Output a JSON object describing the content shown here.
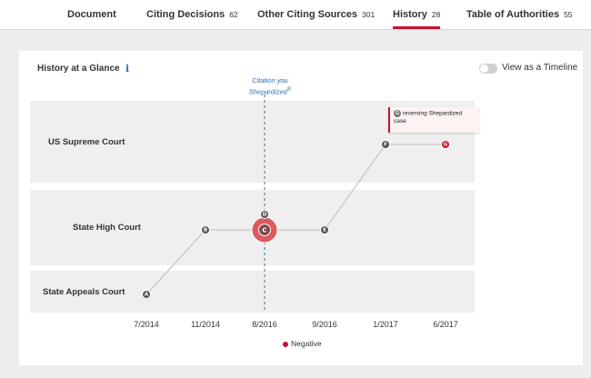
{
  "tabs": [
    {
      "label": "Document",
      "count": ""
    },
    {
      "label": "Citing Decisions",
      "count": "62"
    },
    {
      "label": "Other Citing Sources",
      "count": "301"
    },
    {
      "label": "History",
      "count": "28",
      "active": true
    },
    {
      "label": "Table of Authorities",
      "count": "55"
    }
  ],
  "history": {
    "title": "History at a Glance",
    "info_icon": "i",
    "toggle_label": "View as a Timeline",
    "toggle_on": false,
    "cited_marker": {
      "line1": "Citation you",
      "line2": "Shepardized",
      "reg": "®"
    },
    "tooltip": {
      "badge": "G",
      "text": "reversing Shepardized case"
    },
    "legend": {
      "label": "Negative",
      "color": "#c8102e"
    }
  },
  "colors": {
    "accent": "#c8102e",
    "link": "#2a6fb0",
    "node": "#555555",
    "line": "#bbbbbb"
  },
  "chart_data": {
    "type": "scatter",
    "courts": [
      "US Supreme Court",
      "State High Court",
      "State Appeals Court"
    ],
    "x_dates": [
      "7/2014",
      "11/2014",
      "8/2016",
      "9/2016",
      "1/2017",
      "6/2017"
    ],
    "cited_date": "8/2016",
    "points": [
      {
        "id": "A",
        "date": "7/2014",
        "court": "State Appeals Court",
        "status": "neutral"
      },
      {
        "id": "B",
        "date": "11/2014",
        "court": "State High Court",
        "status": "neutral"
      },
      {
        "id": "C",
        "date": "8/2016",
        "court": "State High Court",
        "status": "cited"
      },
      {
        "id": "D",
        "date": "8/2016",
        "court": "State High Court",
        "status": "neutral",
        "stacked": true
      },
      {
        "id": "E",
        "date": "9/2016",
        "court": "State High Court",
        "status": "neutral"
      },
      {
        "id": "F",
        "date": "1/2017",
        "court": "US Supreme Court",
        "status": "neutral"
      },
      {
        "id": "G",
        "date": "6/2017",
        "court": "US Supreme Court",
        "status": "negative"
      }
    ],
    "path": [
      "A",
      "B",
      "C",
      "E",
      "F",
      "G"
    ]
  }
}
